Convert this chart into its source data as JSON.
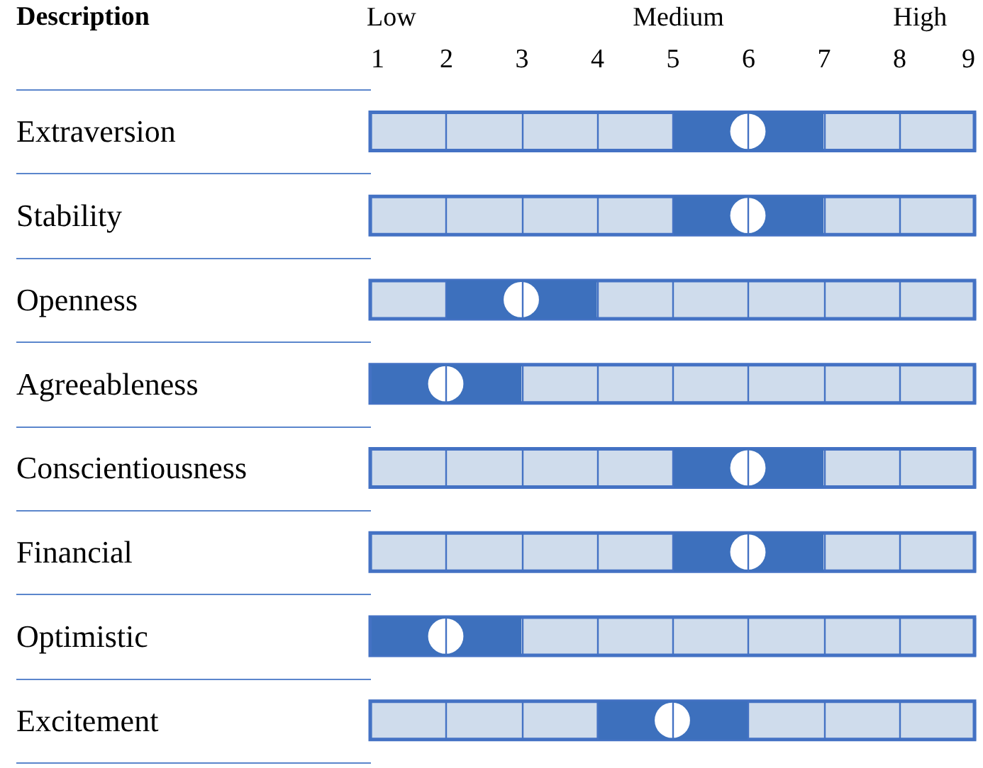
{
  "chart_data": {
    "type": "bar",
    "orientation": "horizontal",
    "ylabel": "Description",
    "categories": [
      "Extraversion",
      "Stability",
      "Openness",
      "Agreeableness",
      "Conscientiousness",
      "Financial",
      "Optimistic",
      "Excitement"
    ],
    "series": [
      {
        "color": "#cfdcec",
        "base": [
          1,
          1,
          1,
          1,
          1,
          1,
          1,
          1
        ],
        "values": [
          8,
          8,
          8,
          8,
          8,
          8,
          8,
          8
        ]
      },
      {
        "color": "#3d70bd",
        "base": [
          5,
          5,
          2,
          1,
          5,
          5,
          1,
          4
        ],
        "values": [
          2,
          2,
          2,
          2,
          2,
          2,
          2,
          2
        ]
      },
      {
        "type": "scatter",
        "color": "#ffffff",
        "values": [
          6,
          6,
          3,
          2,
          6,
          6,
          2,
          5
        ]
      }
    ],
    "xlim": [
      1,
      9
    ],
    "xticks": [
      1,
      2,
      3,
      4,
      5,
      6,
      7,
      8,
      9
    ],
    "annotations": [
      "Low",
      "Medium",
      "High"
    ],
    "grid": "x",
    "marker": "circle",
    "legend": false
  }
}
